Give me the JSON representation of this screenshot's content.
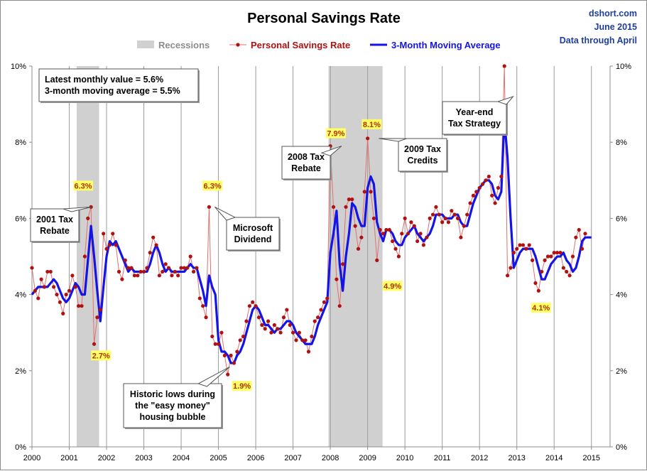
{
  "chart_data": {
    "type": "line",
    "title": "Personal Savings Rate",
    "credit": [
      "dshort.com",
      "June 2015",
      "Data through April"
    ],
    "legend": {
      "placement": "top",
      "items": [
        {
          "label": "Recessions",
          "kind": "band",
          "color": "#d0d0d0",
          "text_color": "#8c8c8c"
        },
        {
          "label": "Personal Savings Rate",
          "kind": "dot-line",
          "color": "#b01010",
          "text_color": "#b01010"
        },
        {
          "label": "3-Month Moving Average",
          "kind": "line",
          "color": "#1414e6",
          "text_color": "#1414e6"
        }
      ]
    },
    "x_range": [
      2000.0,
      2015.5
    ],
    "x_ticks": [
      2000,
      2001,
      2002,
      2003,
      2004,
      2005,
      2006,
      2007,
      2008,
      2009,
      2010,
      2011,
      2012,
      2013,
      2014,
      2015
    ],
    "x_tick_labels": [
      "2000",
      "2001",
      "2002",
      "2003",
      "2004",
      "2005",
      "2006",
      "2007",
      "2008",
      "2009",
      "2010",
      "2011",
      "2012",
      "2013",
      "2014",
      "2015"
    ],
    "y_range": [
      0,
      10
    ],
    "y_ticks": [
      0,
      2,
      4,
      6,
      8,
      10
    ],
    "y_tick_labels": [
      "0%",
      "2%",
      "4%",
      "6%",
      "8%",
      "10%"
    ],
    "grid": "vertical gridlines at each year",
    "recessions": [
      [
        2001.2,
        2001.8
      ],
      [
        2007.95,
        2009.4
      ]
    ],
    "series": [
      {
        "name": "Personal Savings Rate",
        "color": "#b01010",
        "x_start": 2000.0,
        "x_step_months": 1,
        "values": [
          4.7,
          4.1,
          3.9,
          4.4,
          4.2,
          4.6,
          4.6,
          4.2,
          4.0,
          3.8,
          3.5,
          4.0,
          4.1,
          4.5,
          4.2,
          3.7,
          3.7,
          5.0,
          6.0,
          6.3,
          2.7,
          3.4,
          3.6,
          5.6,
          5.2,
          5.3,
          5.6,
          5.3,
          4.6,
          4.4,
          4.9,
          4.7,
          4.7,
          4.5,
          4.5,
          4.6,
          4.6,
          4.7,
          5.1,
          5.5,
          5.3,
          4.5,
          4.6,
          4.8,
          4.7,
          4.5,
          4.6,
          4.5,
          4.7,
          4.7,
          4.7,
          5.0,
          4.6,
          4.7,
          3.9,
          3.7,
          3.4,
          6.3,
          2.9,
          2.7,
          2.7,
          3.0,
          2.4,
          1.9,
          2.4,
          2.2,
          2.5,
          2.8,
          2.9,
          3.3,
          3.7,
          3.8,
          3.7,
          3.4,
          3.2,
          3.1,
          3.3,
          3.0,
          3.2,
          3.1,
          3.0,
          3.4,
          3.6,
          3.2,
          3.0,
          2.8,
          3.0,
          2.8,
          2.8,
          2.5,
          2.9,
          3.3,
          3.4,
          3.6,
          3.8,
          3.9,
          7.9,
          6.3,
          4.4,
          3.7,
          4.8,
          6.3,
          6.5,
          6.5,
          5.8,
          5.2,
          5.5,
          6.7,
          8.1,
          6.7,
          6.0,
          4.9,
          5.7,
          5.6,
          5.7,
          5.7,
          5.4,
          5.2,
          5.0,
          5.6,
          6.0,
          5.6,
          5.9,
          5.8,
          5.4,
          5.6,
          5.3,
          5.5,
          6.0,
          6.1,
          6.3,
          6.1,
          5.9,
          6.0,
          5.9,
          6.2,
          6.1,
          6.0,
          5.5,
          5.8,
          6.1,
          6.4,
          6.6,
          6.7,
          6.8,
          6.9,
          7.0,
          7.1,
          6.6,
          6.4,
          6.8,
          7.1,
          10.0,
          4.5,
          4.7,
          5.1,
          5.2,
          5.3,
          5.3,
          5.2,
          5.3,
          4.9,
          4.3,
          4.1,
          4.6,
          4.9,
          5.0,
          5.0,
          5.1,
          5.1,
          5.1,
          4.7,
          4.6,
          4.5,
          5.0,
          5.5,
          5.7,
          5.2,
          5.6
        ]
      },
      {
        "name": "3-Month Moving Average",
        "color": "#1414e6",
        "x_start": 2000.0,
        "x_step_months": 1,
        "values": [
          4.0,
          4.1,
          4.2,
          4.2,
          4.2,
          4.2,
          4.3,
          4.4,
          4.3,
          4.1,
          3.9,
          3.8,
          3.9,
          4.1,
          4.3,
          4.2,
          4.0,
          4.0,
          4.9,
          5.8,
          5.0,
          4.1,
          3.3,
          4.2,
          5.0,
          5.4,
          5.3,
          5.4,
          5.2,
          5.0,
          4.8,
          4.6,
          4.7,
          4.6,
          4.6,
          4.6,
          4.6,
          4.6,
          4.8,
          5.1,
          5.3,
          5.1,
          4.8,
          4.6,
          4.7,
          4.6,
          4.6,
          4.6,
          4.6,
          4.6,
          4.7,
          4.8,
          4.7,
          4.7,
          4.4,
          4.1,
          3.7,
          4.5,
          4.2,
          4.0,
          2.8,
          2.5,
          2.5,
          2.4,
          2.2,
          2.2,
          2.4,
          2.5,
          2.7,
          3.0,
          3.3,
          3.6,
          3.7,
          3.6,
          3.4,
          3.2,
          3.2,
          3.1,
          3.0,
          3.1,
          3.1,
          3.2,
          3.3,
          3.3,
          3.2,
          3.0,
          2.9,
          2.8,
          2.7,
          2.7,
          2.7,
          2.9,
          3.2,
          3.4,
          3.6,
          3.8,
          5.1,
          5.6,
          6.2,
          4.8,
          4.1,
          5.0,
          5.6,
          6.4,
          6.3,
          6.0,
          5.8,
          5.8,
          6.8,
          7.1,
          6.9,
          5.9,
          5.6,
          5.4,
          5.7,
          5.7,
          5.6,
          5.4,
          5.3,
          5.3,
          5.5,
          5.6,
          5.7,
          5.8,
          5.6,
          5.5,
          5.4,
          5.5,
          5.6,
          5.8,
          6.1,
          6.1,
          6.1,
          6.0,
          6.0,
          6.0,
          6.1,
          6.1,
          5.9,
          5.8,
          5.8,
          6.1,
          6.4,
          6.6,
          6.8,
          6.9,
          7.0,
          7.0,
          6.9,
          6.6,
          6.5,
          6.7,
          8.6,
          7.6,
          6.0,
          4.7,
          4.9,
          5.1,
          5.2,
          5.2,
          5.2,
          5.2,
          5.0,
          4.7,
          4.4,
          4.4,
          4.6,
          4.8,
          4.9,
          5.0,
          5.0,
          5.1,
          4.9,
          4.8,
          4.6,
          4.7,
          5.0,
          5.4,
          5.5,
          5.5,
          5.5
        ]
      }
    ],
    "value_labels": [
      {
        "text": "6.3%",
        "x": 2001.6,
        "y": 6.3
      },
      {
        "text": "2.7%",
        "x": 2001.7,
        "y": 2.7
      },
      {
        "text": "6.3%",
        "x": 2004.8,
        "y": 6.3
      },
      {
        "text": "1.9%",
        "x": 2005.4,
        "y": 1.9
      },
      {
        "text": "7.9%",
        "x": 2008.3,
        "y": 7.9
      },
      {
        "text": "8.1%",
        "x": 2009.3,
        "y": 8.1
      },
      {
        "text": "4.9%",
        "x": 2009.4,
        "y": 4.9
      },
      {
        "text": "4.1%",
        "x": 2013.8,
        "y": 4.1
      }
    ],
    "callouts": [
      {
        "lines": [
          "Latest monthly value = 5.6%",
          "3-month moving average = 5.5%"
        ],
        "pointer": null
      },
      {
        "lines": [
          "2001 Tax",
          "Rebate"
        ],
        "pointer": {
          "x": 2001.6,
          "y": 6.3
        }
      },
      {
        "lines": [
          "Microsoft",
          "Dividend"
        ],
        "pointer": {
          "x": 2004.9,
          "y": 6.3
        }
      },
      {
        "lines": [
          "Historic lows during",
          "the \"easy money\"",
          "housing bubble"
        ],
        "pointer": {
          "x": 2005.3,
          "y": 2.1
        }
      },
      {
        "lines": [
          "2008 Tax",
          "Rebate"
        ],
        "pointer": {
          "x": 2008.3,
          "y": 7.9
        }
      },
      {
        "lines": [
          "2009 Tax",
          "Credits"
        ],
        "pointer": {
          "x": 2009.3,
          "y": 8.1
        }
      },
      {
        "lines": [
          "Year-end",
          "Tax Strategy"
        ],
        "pointer": {
          "x": 2012.9,
          "y": 9.2
        }
      }
    ]
  }
}
